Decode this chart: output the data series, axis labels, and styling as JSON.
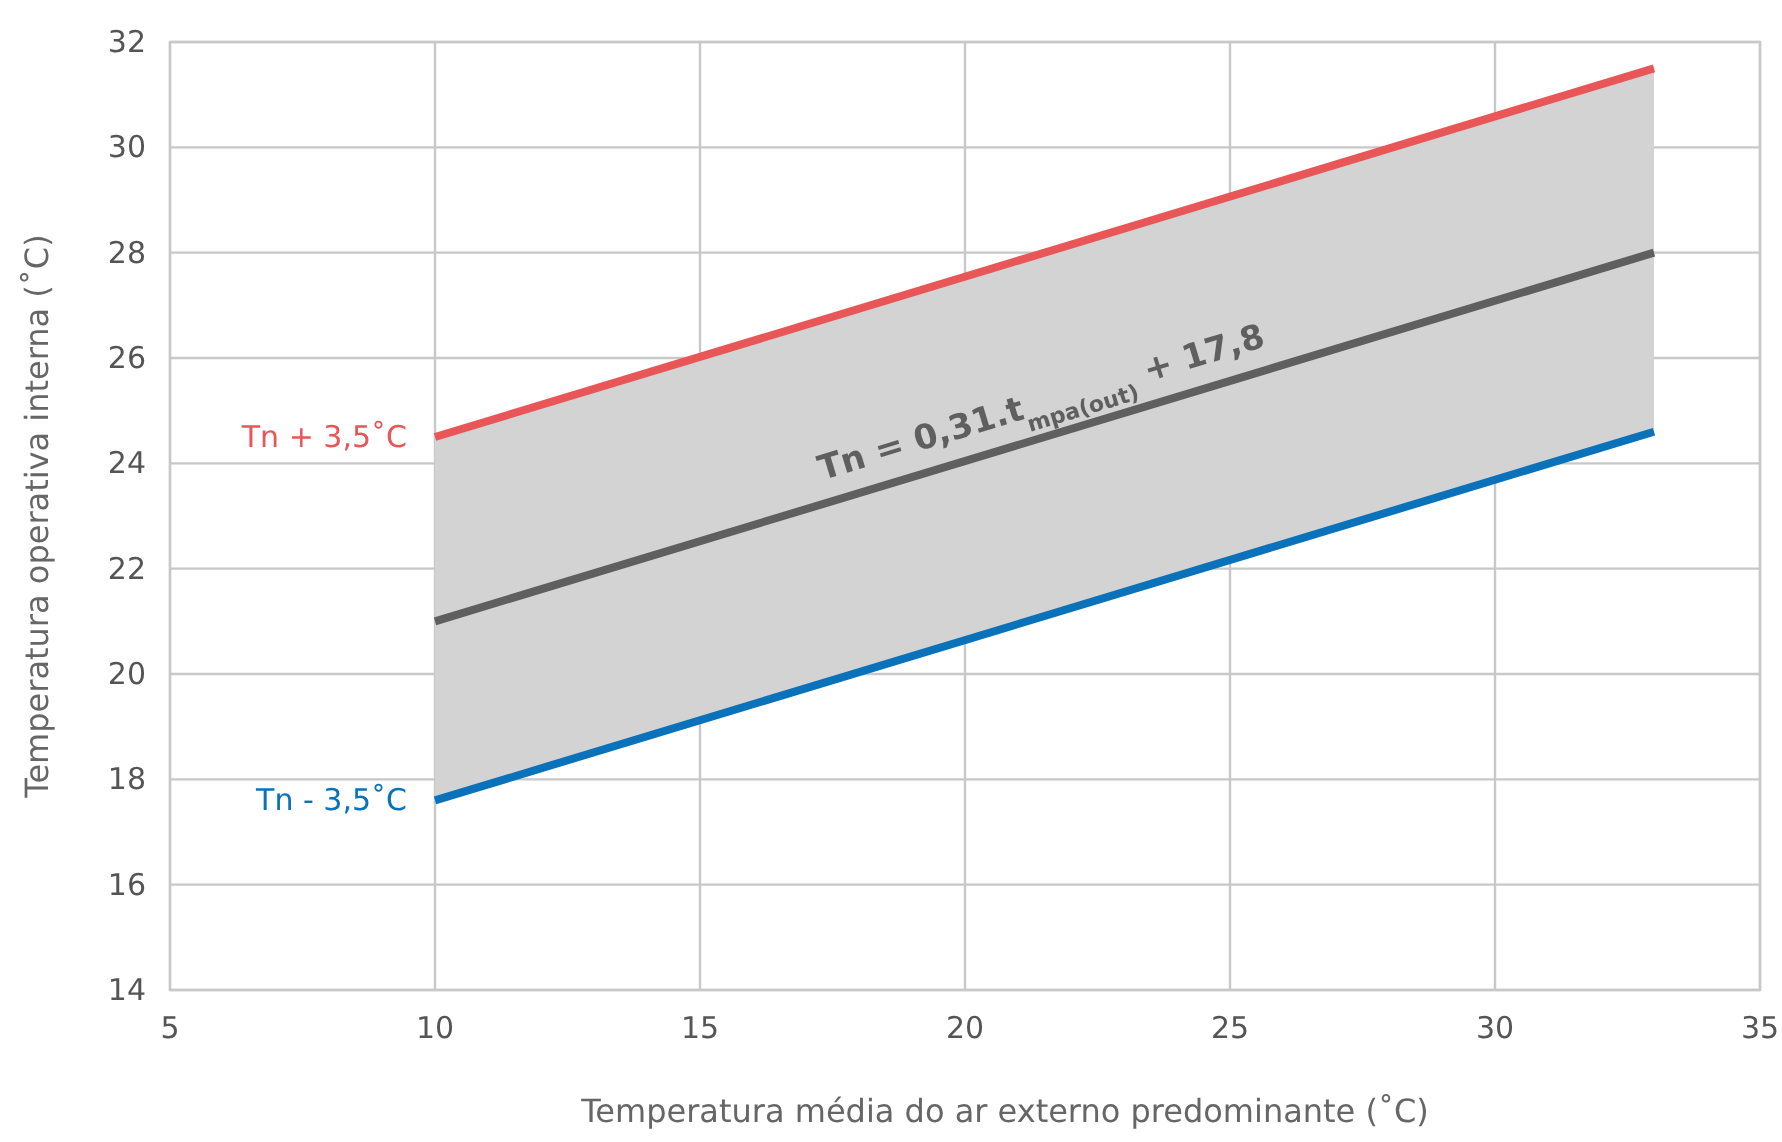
{
  "chart_data": {
    "type": "line",
    "xlabel": "Temperatura média do ar externo predominante (˚C)",
    "ylabel": "Temperatura operativa interna (˚C)",
    "x": [
      10,
      33
    ],
    "series": [
      {
        "name": "Tn + 3,5˚C",
        "color": "#e95657",
        "values": [
          24.5,
          31.5
        ]
      },
      {
        "color": "#5f5f5f",
        "values": [
          21,
          28
        ],
        "lower": [
          17.6,
          24.6
        ],
        "upper": [
          24.5,
          31.5
        ]
      },
      {
        "name": "Tn - 3,5˚C",
        "color": "#0a72ba",
        "values": [
          17.6,
          24.6
        ]
      }
    ],
    "xlim": [
      5,
      35
    ],
    "xticks": [
      5,
      10,
      15,
      20,
      25,
      30,
      35
    ],
    "ylim": [
      14,
      32
    ],
    "yticks": [
      14,
      16,
      18,
      20,
      22,
      24,
      26,
      28,
      30,
      32
    ],
    "grid": true,
    "marker": "none",
    "line_style": "solid",
    "annotations": [
      "Tn = 0,31.t$_{mpa(out)}$ + 17,8"
    ]
  }
}
